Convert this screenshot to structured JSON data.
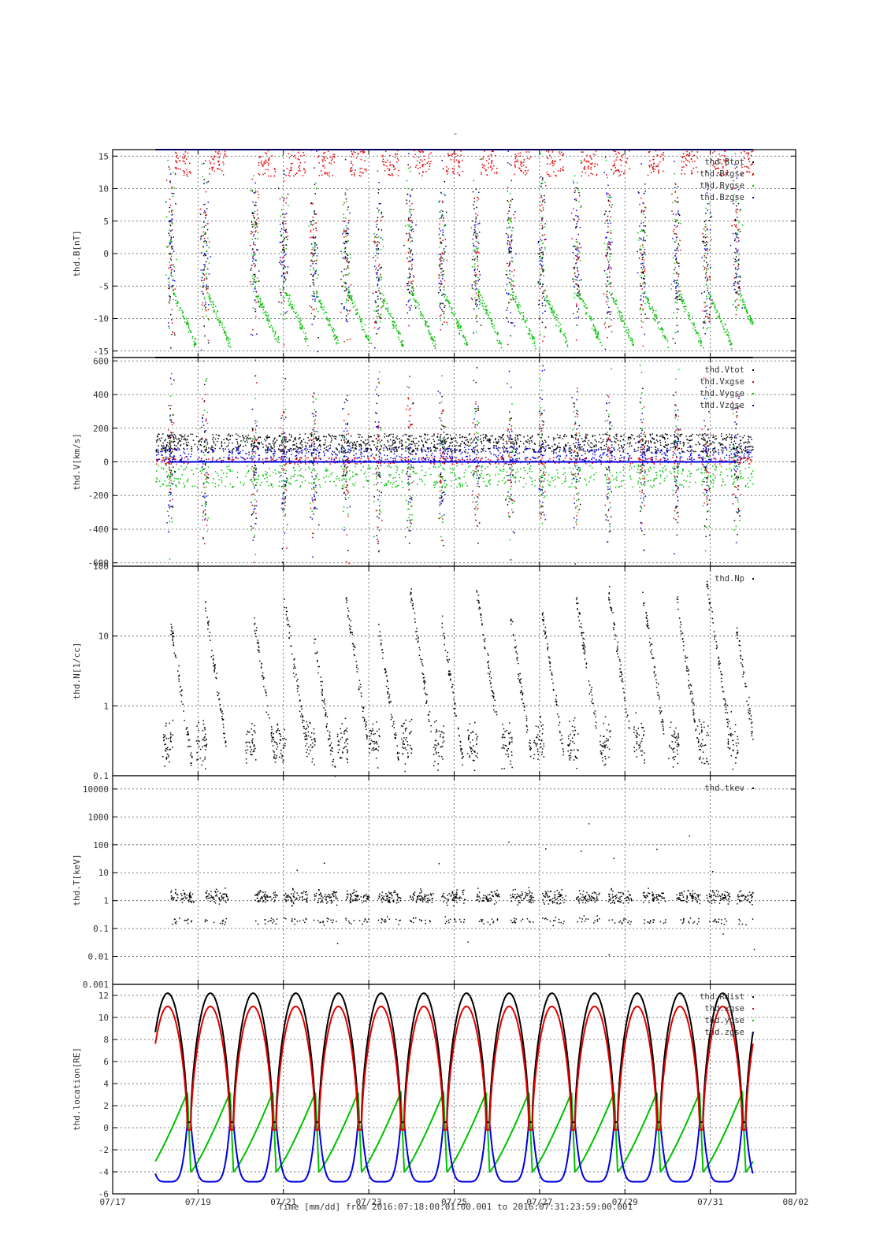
{
  "header": {
    "mark": "-"
  },
  "colors": {
    "black": "#000000",
    "red": "#e00000",
    "green": "#00c000",
    "blue": "#0000e0",
    "grid": "#555555"
  },
  "footer": {
    "text": "Time [mm/dd]  from 2016:07:18:00:01:00.001  to  2016:07:31:23:59:00.001"
  },
  "chart_data": [
    {
      "type": "scatter",
      "ylabel": "thd.B[nT]",
      "ylim": [
        -16,
        16
      ],
      "yticks": [
        "15",
        "10",
        "5",
        "0",
        "-5",
        "-10",
        "-15"
      ],
      "ytick_values": [
        15,
        10,
        5,
        0,
        -5,
        -10,
        -15
      ],
      "legend_placement": "top-right",
      "series": [
        {
          "name": "thd.Btot",
          "color": "black"
        },
        {
          "name": "thd.Bxgse",
          "color": "red"
        },
        {
          "name": "thd.Bygse",
          "color": "green"
        },
        {
          "name": "thd.Bzgse",
          "color": "blue"
        }
      ],
      "grid": true
    },
    {
      "type": "scatter",
      "ylabel": "thd.V[km/s]",
      "ylim": [
        -620,
        620
      ],
      "yticks": [
        "600",
        "400",
        "200",
        "0",
        "-200",
        "-400",
        "-600"
      ],
      "ytick_values": [
        600,
        400,
        200,
        0,
        -200,
        -400,
        -600
      ],
      "legend_placement": "top-right",
      "series": [
        {
          "name": "thd.Vtot",
          "color": "black"
        },
        {
          "name": "thd.Vxgse",
          "color": "red"
        },
        {
          "name": "thd.Vygse",
          "color": "green"
        },
        {
          "name": "thd.Vzgse",
          "color": "blue"
        }
      ],
      "grid": true
    },
    {
      "type": "scatter",
      "ylabel": "thd.N[1/cc]",
      "yscale": "log",
      "ylim": [
        0.1,
        100
      ],
      "yticks": [
        "100",
        "10",
        "1",
        "0.1"
      ],
      "ytick_values": [
        100,
        10,
        1,
        0.1
      ],
      "legend_placement": "top-right",
      "series": [
        {
          "name": "thd.Np",
          "color": "black"
        }
      ],
      "grid": true
    },
    {
      "type": "scatter",
      "ylabel": "thd.T[keV]",
      "yscale": "log",
      "ylim": [
        0.001,
        30000
      ],
      "yticks": [
        "10000",
        "1000",
        "100",
        "10",
        "1",
        "0.1",
        "0.01",
        "0.001"
      ],
      "ytick_values": [
        10000,
        1000,
        100,
        10,
        1,
        0.1,
        0.01,
        0.001
      ],
      "legend_placement": "top-right",
      "series": [
        {
          "name": "thd.tkev",
          "color": "black"
        }
      ],
      "grid": true
    },
    {
      "type": "line",
      "ylabel": "thd.location[RE]",
      "ylim": [
        -6,
        13
      ],
      "yticks": [
        "12",
        "10",
        "8",
        "6",
        "4",
        "2",
        "0",
        "-2",
        "-4",
        "-6"
      ],
      "ytick_values": [
        12,
        10,
        8,
        6,
        4,
        2,
        0,
        -2,
        -4,
        -6
      ],
      "legend_placement": "top-right",
      "series": [
        {
          "name": "thd.Rdist",
          "color": "black"
        },
        {
          "name": "thd.xgse",
          "color": "red"
        },
        {
          "name": "thd.ygse",
          "color": "green"
        },
        {
          "name": "thd.zgse",
          "color": "blue"
        }
      ],
      "grid": true
    }
  ],
  "xaxis": {
    "labels": [
      "07/17",
      "07/19",
      "07/21",
      "07/23",
      "07/25",
      "07/27",
      "07/29",
      "07/31",
      "08/02"
    ],
    "label_days": [
      17,
      19,
      21,
      23,
      25,
      27,
      29,
      31,
      33
    ],
    "xlim_days": [
      17,
      33
    ],
    "data_start_day": 18.0,
    "data_end_day": 32.0
  }
}
